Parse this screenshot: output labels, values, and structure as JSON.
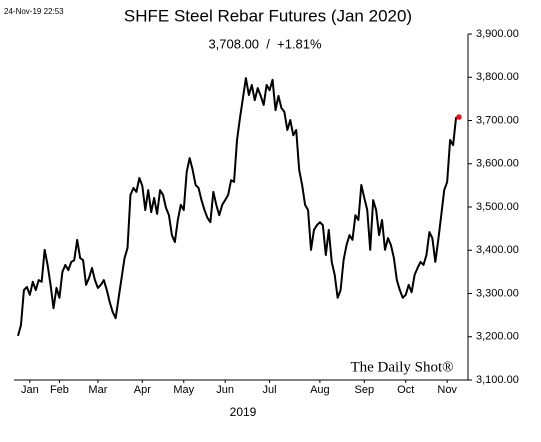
{
  "chart_data": {
    "type": "line",
    "timestamp": "24-Nov-19 22:53",
    "title": "SHFE Steel Rebar Futures (Jan 2020)",
    "subtitle": "3,708.00  /  +1.81%",
    "x_label": "2019",
    "watermark": "The Daily Shot®",
    "color": "#000000",
    "last_point_color": "#e8141b",
    "values": [
      3202,
      3227,
      3308,
      3315,
      3297,
      3327,
      3308,
      3331,
      3327,
      3401,
      3366,
      3320,
      3266,
      3313,
      3290,
      3350,
      3366,
      3354,
      3373,
      3377,
      3424,
      3382,
      3377,
      3320,
      3336,
      3359,
      3331,
      3313,
      3320,
      3331,
      3308,
      3280,
      3257,
      3243,
      3290,
      3336,
      3382,
      3405,
      3528,
      3544,
      3535,
      3567,
      3549,
      3493,
      3539,
      3488,
      3521,
      3484,
      3539,
      3528,
      3498,
      3481,
      3435,
      3419,
      3470,
      3505,
      3493,
      3581,
      3613,
      3586,
      3551,
      3544,
      3516,
      3493,
      3475,
      3465,
      3535,
      3505,
      3481,
      3505,
      3516,
      3528,
      3562,
      3558,
      3655,
      3706,
      3752,
      3798,
      3759,
      3782,
      3747,
      3775,
      3757,
      3736,
      3782,
      3770,
      3794,
      3724,
      3757,
      3729,
      3720,
      3678,
      3701,
      3666,
      3678,
      3586,
      3551,
      3505,
      3493,
      3401,
      3447,
      3458,
      3465,
      3458,
      3389,
      3447,
      3373,
      3343,
      3290,
      3308,
      3377,
      3412,
      3435,
      3424,
      3481,
      3470,
      3551,
      3521,
      3493,
      3401,
      3516,
      3493,
      3435,
      3470,
      3401,
      3428,
      3412,
      3382,
      3331,
      3308,
      3290,
      3297,
      3320,
      3303,
      3343,
      3359,
      3373,
      3366,
      3389,
      3442,
      3428,
      3373,
      3424,
      3481,
      3539,
      3558,
      3655,
      3643,
      3706,
      3708
    ],
    "xlim": [
      0,
      149
    ],
    "xticks": [
      {
        "value": 4,
        "label": "Jan"
      },
      {
        "value": 14,
        "label": "Feb"
      },
      {
        "value": 27,
        "label": "Mar"
      },
      {
        "value": 42,
        "label": "Apr"
      },
      {
        "value": 56,
        "label": "May"
      },
      {
        "value": 70,
        "label": "Jun"
      },
      {
        "value": 85,
        "label": "Jul"
      },
      {
        "value": 102,
        "label": "Aug"
      },
      {
        "value": 117,
        "label": "Sep"
      },
      {
        "value": 131,
        "label": "Oct"
      },
      {
        "value": 145,
        "label": "Nov"
      }
    ],
    "ylim": [
      3100,
      3900
    ],
    "yticks": [
      {
        "value": 3100,
        "label": "3,100.00"
      },
      {
        "value": 3200,
        "label": "3,200.00"
      },
      {
        "value": 3300,
        "label": "3,300.00"
      },
      {
        "value": 3400,
        "label": "3,400.00"
      },
      {
        "value": 3500,
        "label": "3,500.00"
      },
      {
        "value": 3600,
        "label": "3,600.00"
      },
      {
        "value": 3700,
        "label": "3,700.00"
      },
      {
        "value": 3800,
        "label": "3,800.00"
      },
      {
        "value": 3900,
        "label": "3,900.00"
      }
    ],
    "y_axis_side": "right"
  }
}
